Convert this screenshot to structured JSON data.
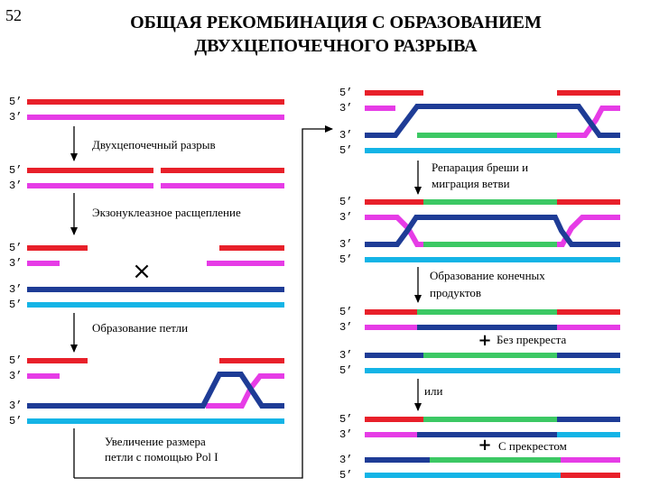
{
  "page_number": "52",
  "title": {
    "line1": "ОБЩАЯ РЕКОМБИНАЦИЯ С ОБРАЗОВАНИЕМ",
    "line2": "ДВУХЦЕПОЧЕЧНОГО РАЗРЫВА"
  },
  "strand_end_labels": {
    "five_prime": "5’",
    "three_prime": "3’"
  },
  "steps": {
    "double_strand_break": "Двухцепочечный разрыв",
    "exonuclease_cleavage": "Экзонуклеазное расщепление",
    "loop_formation": "Образование петли",
    "loop_enlargement_line1": "Увеличение размера",
    "loop_enlargement_line2": "петли с помощью Pol I",
    "gap_repair_line1": "Репарация бреши и",
    "gap_repair_line2": "миграция ветви",
    "end_products_line1": "Образование конечных",
    "end_products_line2": "продуктов",
    "without_crossover": "Без прекреста",
    "or": "или",
    "with_crossover": "С прекрестом"
  },
  "symbols": {
    "cross": "×",
    "plus": "+"
  },
  "colors": {
    "red_strand": "#e8202a",
    "magenta_strand": "#e63ce6",
    "navy_strand": "#1e3c96",
    "cyan_strand": "#14b4e6",
    "green_new_synthesis": "#3cc864"
  }
}
